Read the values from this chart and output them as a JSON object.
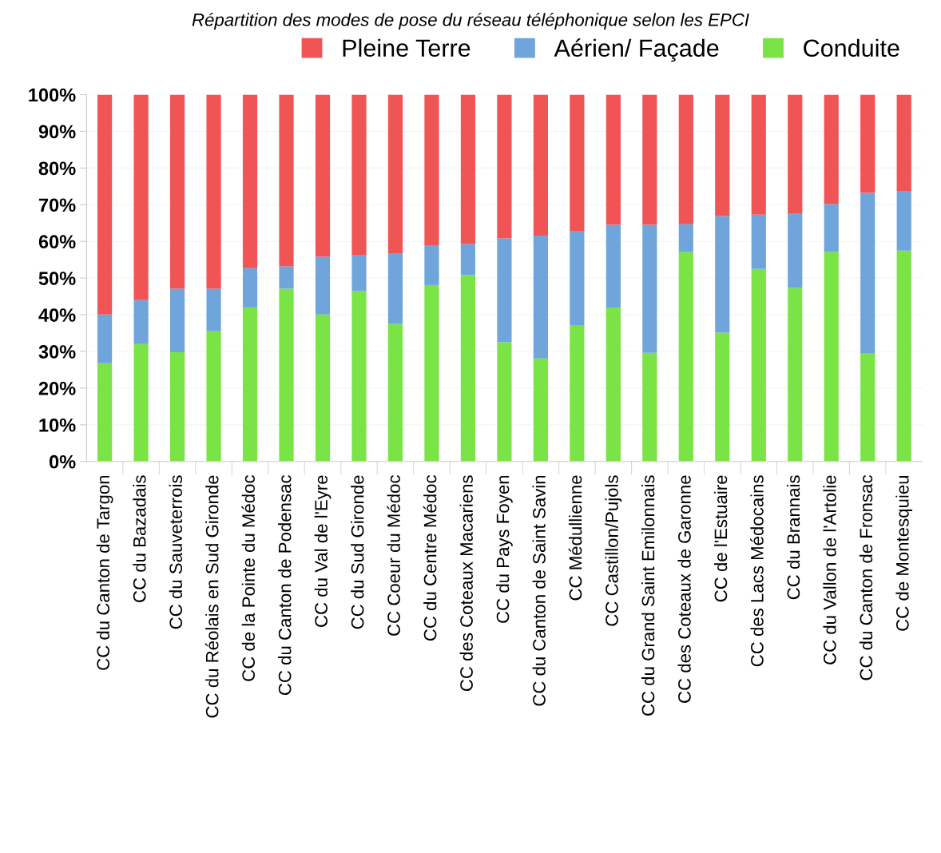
{
  "chart_data": {
    "type": "bar",
    "stacked": true,
    "title": "Répartition des modes de pose du réseau téléphonique selon les EPCI",
    "categories": [
      "CC du Canton de Targon",
      "CC du Bazadais",
      "CC du Sauveterrois",
      "CC du Réolais en Sud Gironde",
      "CC de la Pointe du Médoc",
      "CC du Canton de Podensac",
      "CC du Val de l'Eyre",
      "CC du Sud Gironde",
      "CC Coeur du Médoc",
      "CC du Centre Médoc",
      "CC des Coteaux Macariens",
      "CC du Pays Foyen",
      "CC du Canton de Saint Savin",
      "CC Médullienne",
      "CC Castillon/Pujols",
      "CC du Grand Saint Emilonnais",
      "CC des Coteaux de Garonne",
      "CC de l'Estuaire",
      "CC des Lacs Médocains",
      "CC du Brannais",
      "CC du Vallon de l'Artolie",
      "CC du Canton de Fronsac",
      "CC de Montesquieu"
    ],
    "series": [
      {
        "name": "Conduite",
        "color": "#7ae346",
        "values": [
          26.8,
          32.0,
          29.8,
          35.5,
          42.0,
          47.1,
          40.1,
          46.4,
          37.5,
          48.1,
          50.8,
          32.5,
          28.1,
          37.0,
          42.0,
          29.6,
          57.1,
          35.1,
          52.5,
          47.3,
          57.1,
          29.4,
          57.5
        ]
      },
      {
        "name": "Aérien/ Façade",
        "color": "#6fa5da",
        "values": [
          13.3,
          12.0,
          17.3,
          11.6,
          10.7,
          6.1,
          15.7,
          9.8,
          19.1,
          10.7,
          8.5,
          28.3,
          33.5,
          25.7,
          22.5,
          34.9,
          7.6,
          31.8,
          14.8,
          20.2,
          13.1,
          43.8,
          16.1
        ]
      },
      {
        "name": "Pleine Terre",
        "color": "#f05454",
        "values": [
          59.9,
          56.0,
          52.9,
          52.9,
          47.3,
          46.8,
          44.2,
          43.8,
          43.4,
          41.2,
          40.7,
          39.2,
          38.4,
          37.3,
          35.5,
          35.5,
          35.3,
          33.1,
          32.7,
          32.5,
          29.8,
          26.8,
          26.4
        ]
      }
    ],
    "ylim": [
      0,
      100
    ],
    "yticks": [
      {
        "value": 0,
        "label": "0%"
      },
      {
        "value": 10,
        "label": "10%"
      },
      {
        "value": 20,
        "label": "20%"
      },
      {
        "value": 30,
        "label": "30%"
      },
      {
        "value": 40,
        "label": "40%"
      },
      {
        "value": 50,
        "label": "50%"
      },
      {
        "value": 60,
        "label": "60%"
      },
      {
        "value": 70,
        "label": "70%"
      },
      {
        "value": 80,
        "label": "80%"
      },
      {
        "value": 90,
        "label": "90%"
      },
      {
        "value": 100,
        "label": "100%"
      }
    ],
    "grid": "y",
    "legend": "top right"
  }
}
